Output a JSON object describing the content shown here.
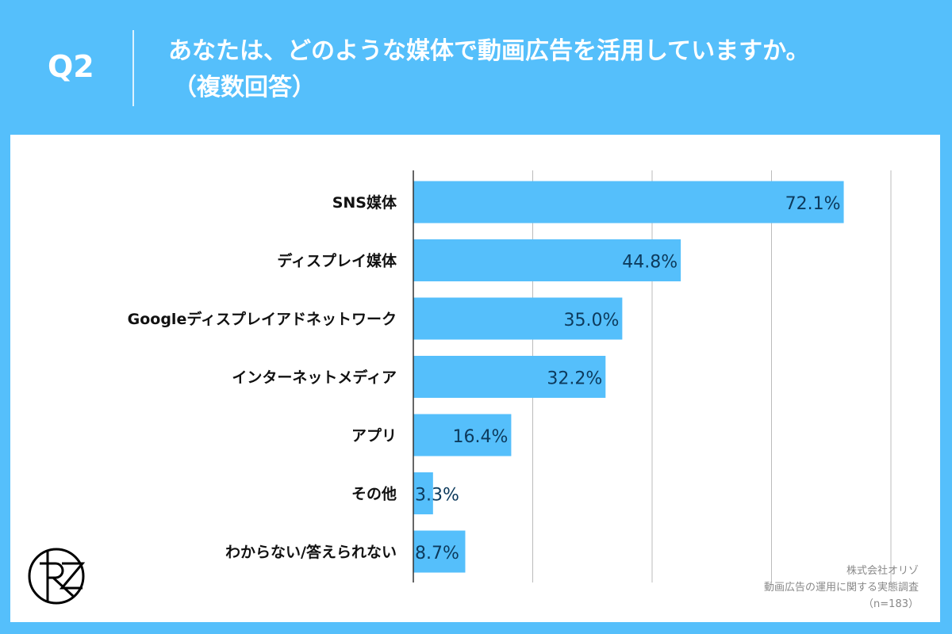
{
  "header": {
    "question": "Q2",
    "title_line1": "あなたは、どのような媒体で動画広告を活用していますか。",
    "title_line2": "（複数回答）"
  },
  "footer": {
    "company": "株式会社オリゾ",
    "survey": "動画広告の運用に関する実態調査",
    "sample": "（n=183）"
  },
  "logo_text": "RZ",
  "colors": {
    "background": "#55bffb",
    "bar": "#55bffb",
    "value_label": "#0d3a5c"
  },
  "chart_data": {
    "type": "bar",
    "orientation": "horizontal",
    "categories": [
      "SNS媒体",
      "ディスプレイ媒体",
      "Googleディスプレイアドネットワーク",
      "インターネットメディア",
      "アプリ",
      "その他",
      "わからない/答えられない"
    ],
    "values": [
      72.1,
      44.8,
      35.0,
      32.2,
      16.4,
      3.3,
      8.7
    ],
    "labels": [
      "72.1%",
      "44.8%",
      "35.0%",
      "32.2%",
      "16.4%",
      "3.3%",
      "8.7%"
    ],
    "xlim": [
      0,
      80
    ],
    "grid": true,
    "unit": "%"
  }
}
